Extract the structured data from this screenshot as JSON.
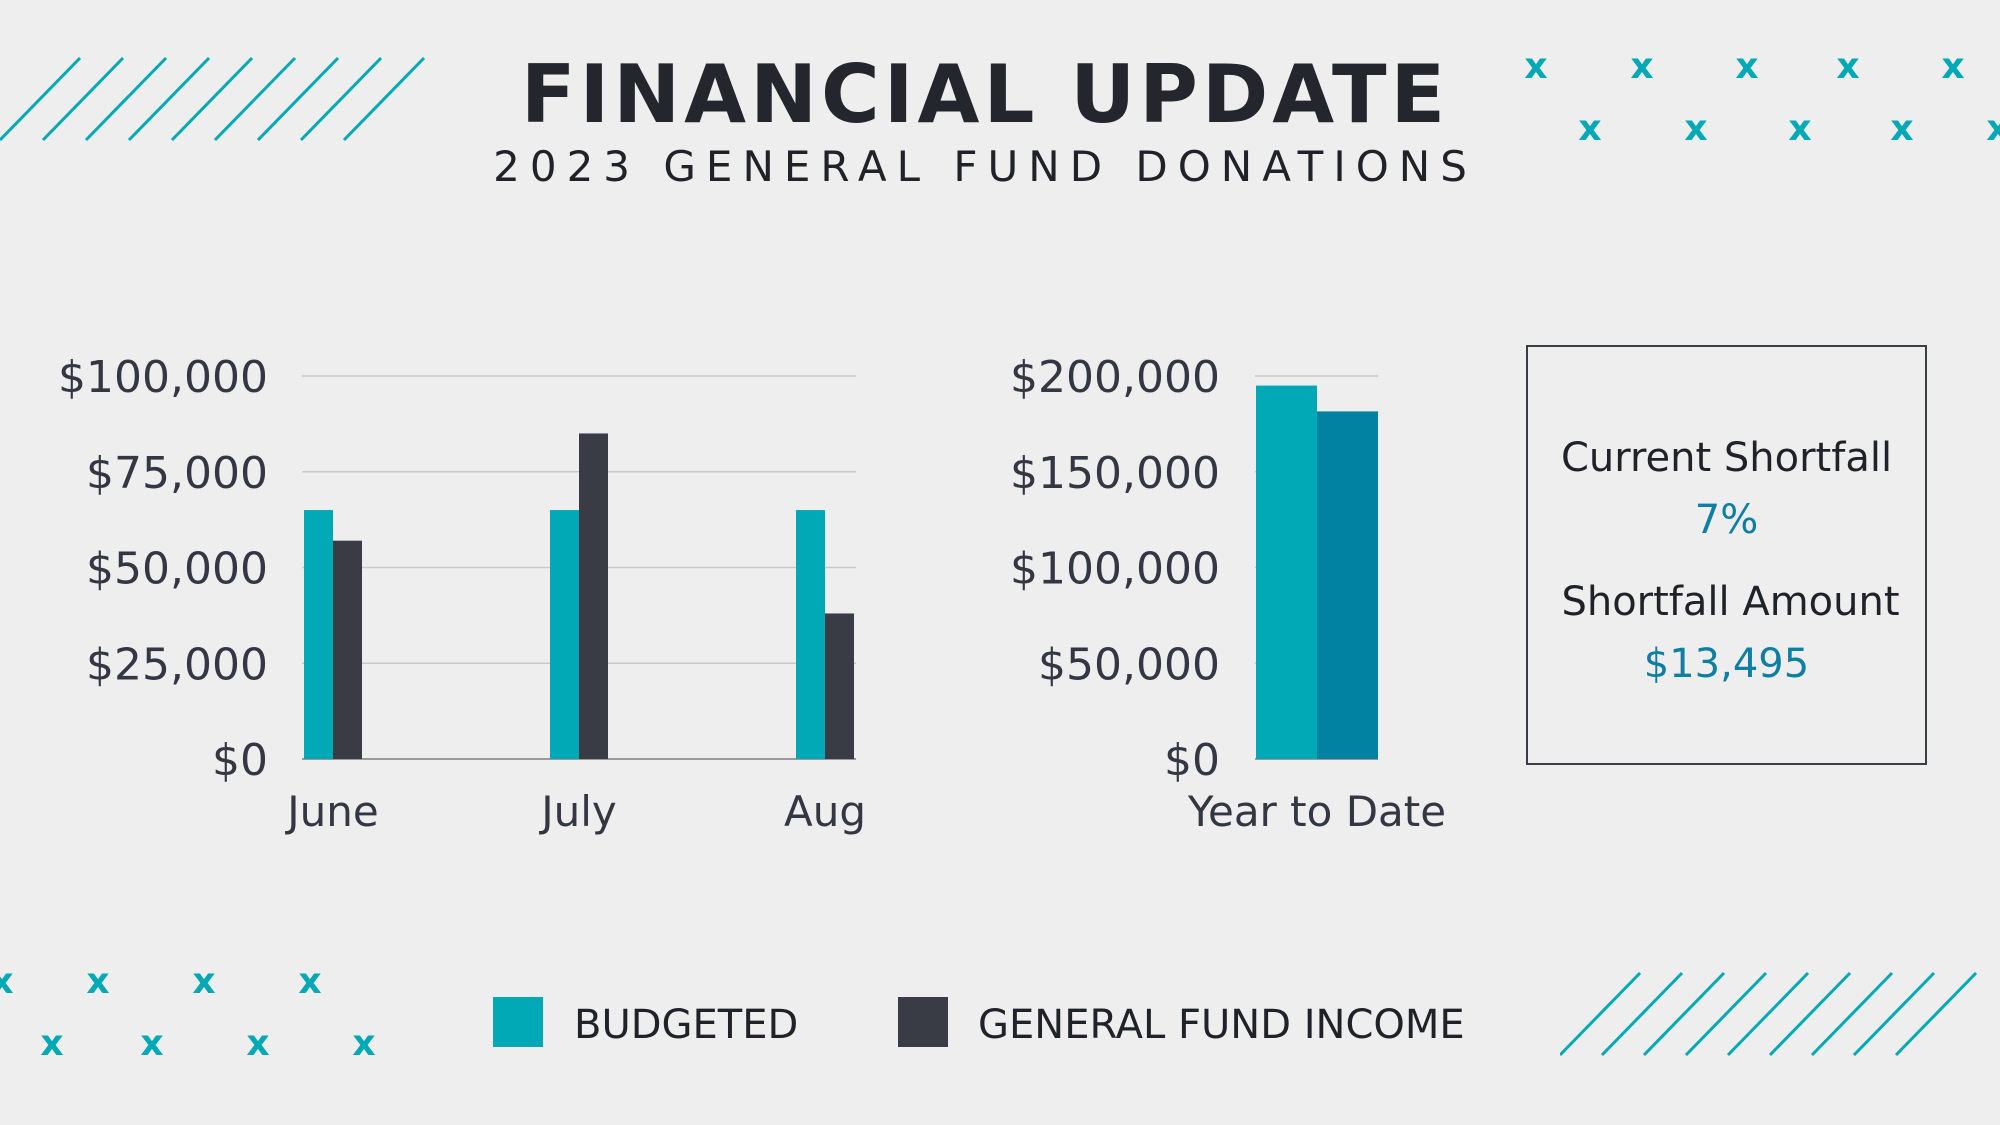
{
  "title": "FINANCIAL UPDATE",
  "subtitle": "2023 GENERAL FUND DONATIONS",
  "colors": {
    "budgeted": "#00a9b5",
    "income": "#393c45",
    "ytd_income": "#0282a3",
    "accent": "#0e7fa3",
    "background": "#eeeeee"
  },
  "chart_data": [
    {
      "type": "bar",
      "categories": [
        "June",
        "July",
        "Aug"
      ],
      "series": [
        {
          "name": "BUDGETED",
          "values": [
            65000,
            65000,
            65000
          ]
        },
        {
          "name": "GENERAL FUND INCOME",
          "values": [
            57000,
            85000,
            38000
          ]
        }
      ],
      "yticks": [
        "$0",
        "$25,000",
        "$50,000",
        "$75,000",
        "$100,000"
      ],
      "ylim": [
        0,
        100000
      ],
      "grid": true
    },
    {
      "type": "bar",
      "categories": [
        "Year to Date"
      ],
      "series": [
        {
          "name": "BUDGETED",
          "values": [
            195000
          ]
        },
        {
          "name": "GENERAL FUND INCOME",
          "values": [
            181505
          ]
        }
      ],
      "yticks": [
        "$0",
        "$50,000",
        "$100,000",
        "$150,000",
        "$200,000"
      ],
      "ylim": [
        0,
        200000
      ],
      "grid": true
    }
  ],
  "summary": {
    "shortfall_label": "Current Shortfall",
    "shortfall_percent": "7%",
    "amount_label": "Shortfall Amount",
    "amount_value": "$13,495"
  },
  "legend": [
    {
      "label": "BUDGETED",
      "color": "#00a9b5"
    },
    {
      "label": "GENERAL FUND INCOME",
      "color": "#393c45"
    }
  ]
}
